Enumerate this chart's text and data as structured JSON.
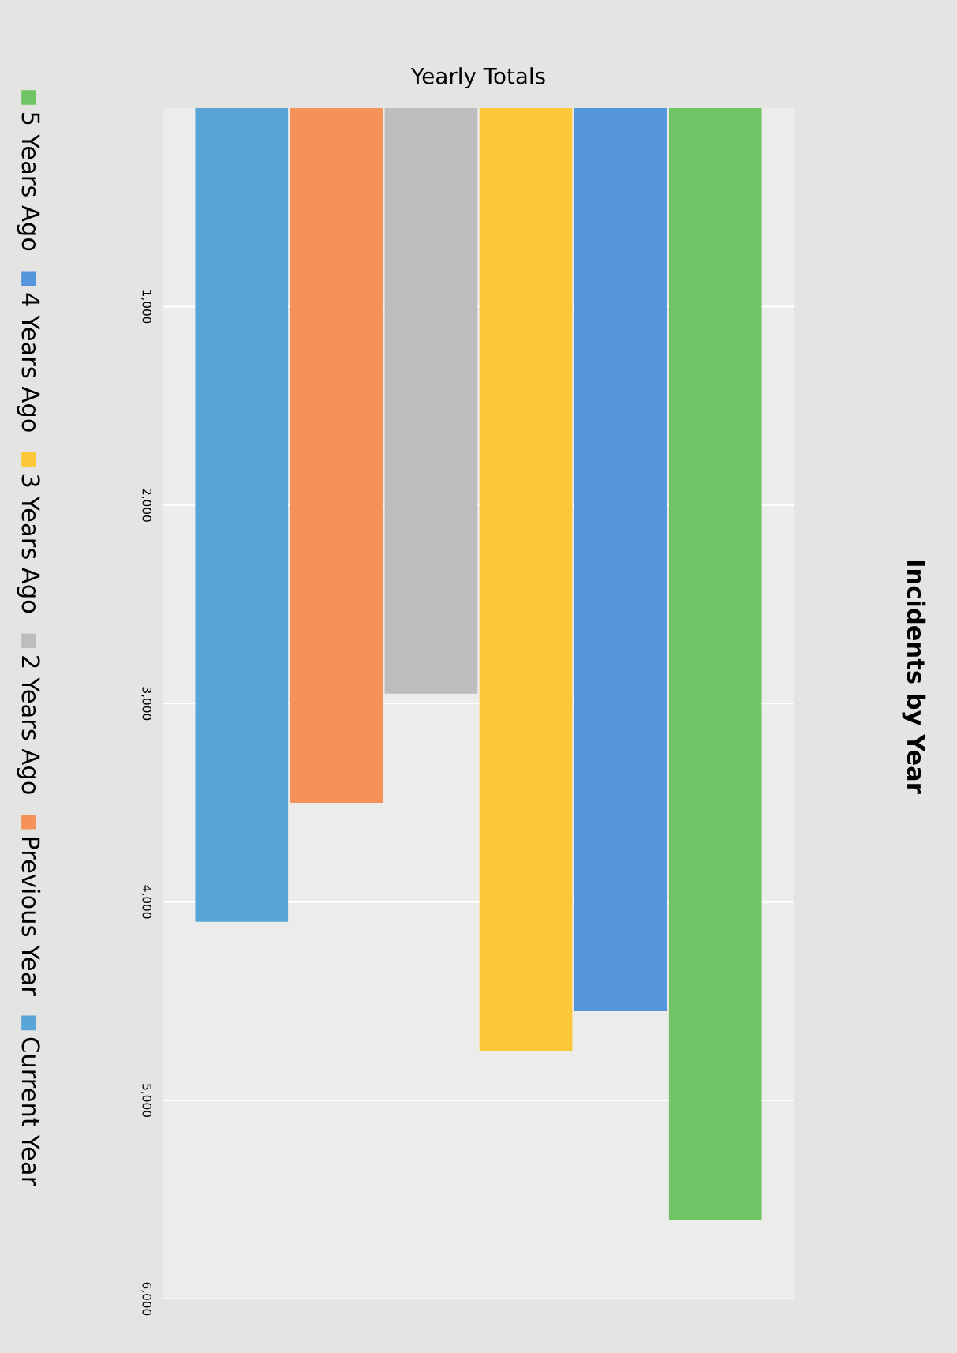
{
  "chart_data": {
    "type": "bar",
    "title": "Incidents by Year",
    "categories": [
      "Yearly Totals"
    ],
    "series": [
      {
        "name": "Current Year",
        "color": "#5aa5d8",
        "values": [
          4100
        ]
      },
      {
        "name": "Previous Year",
        "color": "#f4925a",
        "values": [
          3500
        ]
      },
      {
        "name": "2 Years Ago",
        "color": "#bdbdbd",
        "values": [
          2950
        ]
      },
      {
        "name": "3 Years Ago",
        "color": "#fdc93a",
        "values": [
          4750
        ]
      },
      {
        "name": "4 Years Ago",
        "color": "#5595dc",
        "values": [
          4550
        ]
      },
      {
        "name": "5 Years Ago",
        "color": "#70c465",
        "values": [
          5600
        ]
      }
    ],
    "ylim": [
      6000,
      0
    ],
    "yticks": [
      {
        "value": 1000,
        "label": "1,000"
      },
      {
        "value": 2000,
        "label": "2,000"
      },
      {
        "value": 3000,
        "label": "3,000"
      },
      {
        "value": 4000,
        "label": "4,000"
      },
      {
        "value": 5000,
        "label": "5,000"
      },
      {
        "value": 6000,
        "label": "6,000"
      }
    ],
    "grid": "y",
    "legend": "left"
  }
}
